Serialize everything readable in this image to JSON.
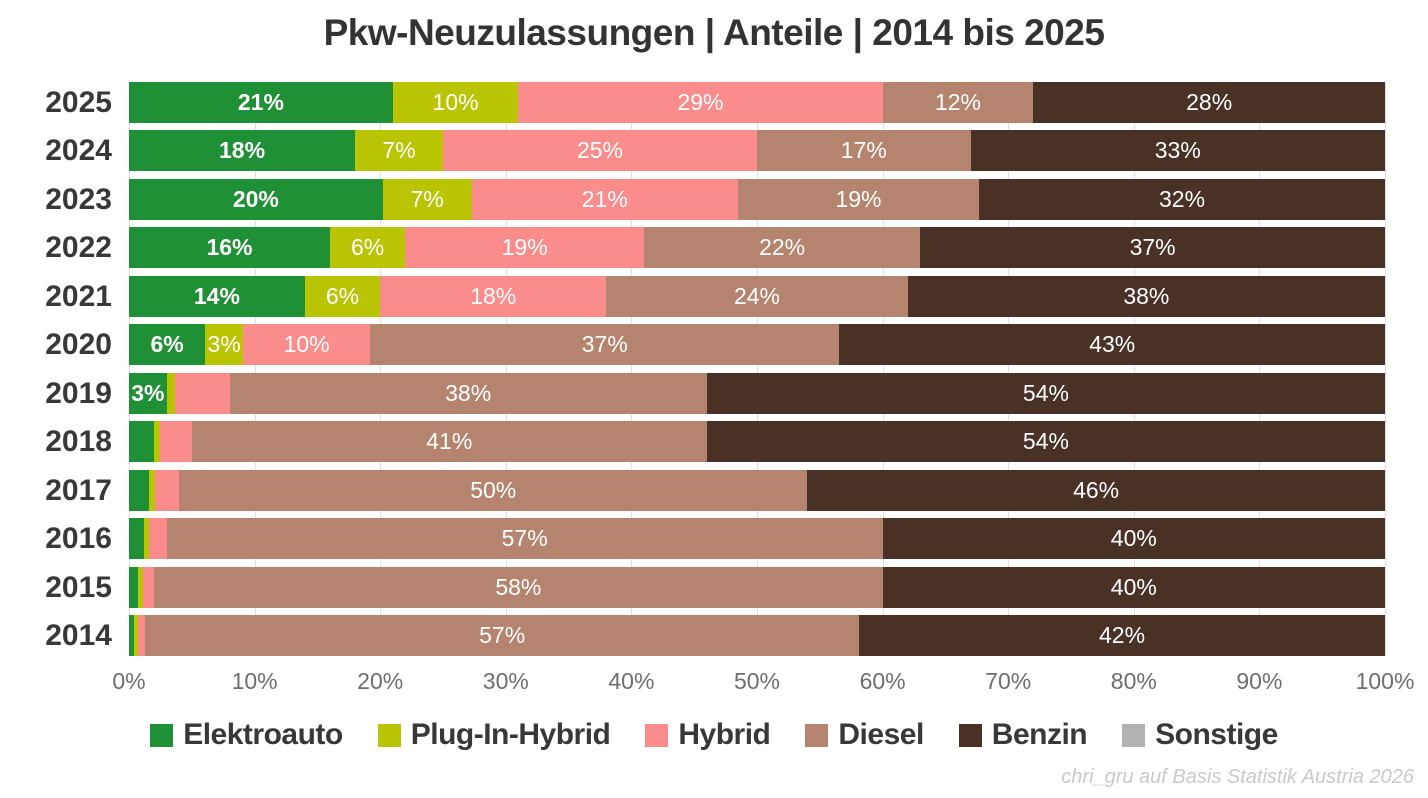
{
  "title": "Pkw-Neuzulassungen | Anteile | 2014 bis 2025",
  "footer": "chri_gru auf Basis Statistik Austria 2026",
  "chart_data": {
    "type": "bar",
    "orientation": "horizontal",
    "stacked": true,
    "unit": "percent",
    "title": "Pkw-Neuzulassungen | Anteile | 2014 bis 2025",
    "xlabel": "",
    "ylabel": "",
    "xlim": [
      0,
      100
    ],
    "grid": true,
    "legend_position": "bottom",
    "x_ticks": [
      "0%",
      "10%",
      "20%",
      "30%",
      "40%",
      "50%",
      "60%",
      "70%",
      "80%",
      "90%",
      "100%"
    ],
    "series": [
      {
        "name": "Elektroauto",
        "color": "#1f9036"
      },
      {
        "name": "Plug-In-Hybrid",
        "color": "#b8c404"
      },
      {
        "name": "Hybrid",
        "color": "#fa8c8c"
      },
      {
        "name": "Diesel",
        "color": "#b5846e"
      },
      {
        "name": "Benzin",
        "color": "#4a3126"
      },
      {
        "name": "Sonstige",
        "color": "#b2b2b2"
      }
    ],
    "rows": [
      {
        "year": "2025",
        "values": [
          21,
          10,
          29,
          12,
          28,
          0
        ],
        "labels": [
          "21%",
          "10%",
          "29%",
          "12%",
          "28%",
          ""
        ]
      },
      {
        "year": "2024",
        "values": [
          18,
          7,
          25,
          17,
          33,
          0
        ],
        "labels": [
          "18%",
          "7%",
          "25%",
          "17%",
          "33%",
          ""
        ]
      },
      {
        "year": "2023",
        "values": [
          20,
          7,
          21,
          19,
          32,
          0
        ],
        "labels": [
          "20%",
          "7%",
          "21%",
          "19%",
          "32%",
          ""
        ]
      },
      {
        "year": "2022",
        "values": [
          16,
          6,
          19,
          22,
          37,
          0
        ],
        "labels": [
          "16%",
          "6%",
          "19%",
          "22%",
          "37%",
          ""
        ]
      },
      {
        "year": "2021",
        "values": [
          14,
          6,
          18,
          24,
          38,
          0
        ],
        "labels": [
          "14%",
          "6%",
          "18%",
          "24%",
          "38%",
          ""
        ]
      },
      {
        "year": "2020",
        "values": [
          6,
          3,
          10,
          37,
          43,
          0
        ],
        "labels": [
          "6%",
          "3%",
          "10%",
          "37%",
          "43%",
          ""
        ]
      },
      {
        "year": "2019",
        "values": [
          3,
          0.7,
          4.3,
          38,
          54,
          0
        ],
        "labels": [
          "3%",
          "",
          "",
          "38%",
          "54%",
          ""
        ]
      },
      {
        "year": "2018",
        "values": [
          2,
          0.5,
          2.5,
          41,
          54,
          0
        ],
        "labels": [
          "",
          "",
          "",
          "41%",
          "54%",
          ""
        ]
      },
      {
        "year": "2017",
        "values": [
          1.6,
          0.5,
          1.9,
          50,
          46,
          0
        ],
        "labels": [
          "",
          "",
          "",
          "50%",
          "46%",
          ""
        ]
      },
      {
        "year": "2016",
        "values": [
          1.2,
          0.4,
          1.4,
          57,
          40,
          0
        ],
        "labels": [
          "",
          "",
          "",
          "57%",
          "40%",
          ""
        ]
      },
      {
        "year": "2015",
        "values": [
          0.7,
          0.4,
          0.9,
          58,
          40,
          0
        ],
        "labels": [
          "",
          "",
          "",
          "58%",
          "40%",
          ""
        ]
      },
      {
        "year": "2014",
        "values": [
          0.4,
          0.3,
          0.6,
          57,
          42,
          0
        ],
        "labels": [
          "",
          "",
          "",
          "57%",
          "42%",
          ""
        ]
      }
    ]
  }
}
